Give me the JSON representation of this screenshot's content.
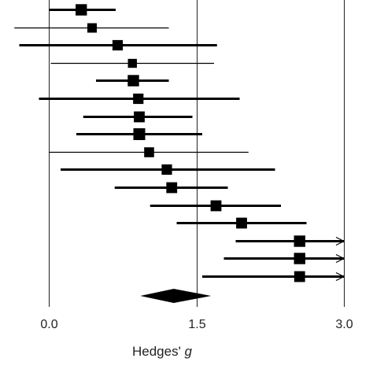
{
  "chart_data": {
    "type": "forest",
    "title": "",
    "xlabel_main": "Hedges' ",
    "xlabel_italic": "g",
    "xlim": [
      0.0,
      3.0
    ],
    "x_ticks": [
      0.0,
      1.5,
      3.0
    ],
    "x_tick_labels": [
      "0.0",
      "1.5",
      "3.0"
    ],
    "grid": "vertical lines at ticks",
    "studies": [
      {
        "g": 0.33,
        "ci": [
          0.0,
          0.68
        ],
        "weight": 0.9
      },
      {
        "g": 0.44,
        "ci": [
          -0.35,
          1.22
        ],
        "weight": 0.5
      },
      {
        "g": 0.7,
        "ci": [
          -0.3,
          1.71
        ],
        "weight": 0.7
      },
      {
        "g": 0.85,
        "ci": [
          0.02,
          1.68
        ],
        "weight": 0.4
      },
      {
        "g": 0.86,
        "ci": [
          0.48,
          1.22
        ],
        "weight": 0.9
      },
      {
        "g": 0.91,
        "ci": [
          -0.1,
          1.94
        ],
        "weight": 0.7
      },
      {
        "g": 0.92,
        "ci": [
          0.35,
          1.46
        ],
        "weight": 0.8
      },
      {
        "g": 0.92,
        "ci": [
          0.28,
          1.56
        ],
        "weight": 1.0
      },
      {
        "g": 1.02,
        "ci": [
          0.0,
          2.03
        ],
        "weight": 0.6
      },
      {
        "g": 1.2,
        "ci": [
          0.12,
          2.3
        ],
        "weight": 0.7
      },
      {
        "g": 1.25,
        "ci": [
          0.67,
          1.82
        ],
        "weight": 0.8
      },
      {
        "g": 1.7,
        "ci": [
          1.03,
          2.36
        ],
        "weight": 0.8
      },
      {
        "g": 1.96,
        "ci": [
          1.3,
          2.62
        ],
        "weight": 0.8
      },
      {
        "g": 2.55,
        "ci": [
          1.9,
          3.0
        ],
        "weight": 0.9,
        "arrow": true
      },
      {
        "g": 2.55,
        "ci": [
          1.78,
          3.0
        ],
        "weight": 0.9,
        "arrow": true
      },
      {
        "g": 2.55,
        "ci": [
          1.56,
          3.0
        ],
        "weight": 0.8,
        "arrow": true
      }
    ],
    "summary": {
      "g": 1.27,
      "ci": [
        0.93,
        1.65
      ]
    }
  },
  "colors": {
    "marks": "#000000",
    "axis": "#222222",
    "background": "#ffffff"
  }
}
